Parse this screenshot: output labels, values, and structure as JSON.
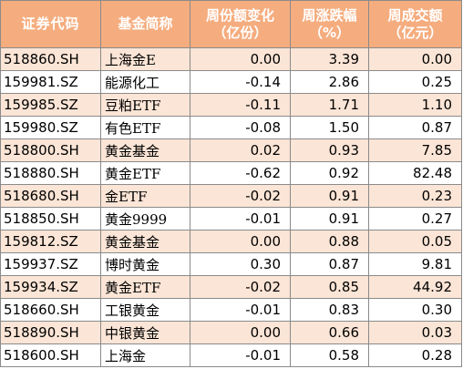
{
  "headers": [
    {
      "line1": "证券代码",
      "line2": ""
    },
    {
      "line1": "基金简称",
      "line2": ""
    },
    {
      "line1": "周份额变化",
      "line2": "（亿份）"
    },
    {
      "line1": "周涨跌幅",
      "line2": "（%）"
    },
    {
      "line1": "周成交额",
      "line2": "（亿元）"
    }
  ],
  "rows": [
    {
      "code": "518860.SH",
      "name": "上海金E",
      "share_change": "0.00",
      "pct_change": "3.39",
      "turnover": "0.00"
    },
    {
      "code": "159981.SZ",
      "name": "能源化工",
      "share_change": "-0.14",
      "pct_change": "2.86",
      "turnover": "0.25"
    },
    {
      "code": "159985.SZ",
      "name": "豆粕ETF",
      "share_change": "-0.11",
      "pct_change": "1.71",
      "turnover": "1.10"
    },
    {
      "code": "159980.SZ",
      "name": "有色ETF",
      "share_change": "-0.08",
      "pct_change": "1.50",
      "turnover": "0.87"
    },
    {
      "code": "518800.SH",
      "name": "黄金基金",
      "share_change": "0.02",
      "pct_change": "0.93",
      "turnover": "7.85"
    },
    {
      "code": "518880.SH",
      "name": "黄金ETF",
      "share_change": "-0.62",
      "pct_change": "0.92",
      "turnover": "82.48"
    },
    {
      "code": "518680.SH",
      "name": "金ETF",
      "share_change": "-0.02",
      "pct_change": "0.91",
      "turnover": "0.23"
    },
    {
      "code": "518850.SH",
      "name": "黄金9999",
      "share_change": "-0.01",
      "pct_change": "0.91",
      "turnover": "0.27"
    },
    {
      "code": "159812.SZ",
      "name": "黄金基金",
      "share_change": "0.00",
      "pct_change": "0.88",
      "turnover": "0.05"
    },
    {
      "code": "159937.SZ",
      "name": "博时黄金",
      "share_change": "0.30",
      "pct_change": "0.87",
      "turnover": "9.81"
    },
    {
      "code": "159934.SZ",
      "name": "黄金ETF",
      "share_change": "-0.02",
      "pct_change": "0.85",
      "turnover": "44.92"
    },
    {
      "code": "518660.SH",
      "name": "工银黄金",
      "share_change": "-0.01",
      "pct_change": "0.83",
      "turnover": "0.30"
    },
    {
      "code": "518890.SH",
      "name": "中银黄金",
      "share_change": "0.00",
      "pct_change": "0.66",
      "turnover": "0.03"
    },
    {
      "code": "518600.SH",
      "name": "上海金",
      "share_change": "-0.01",
      "pct_change": "0.58",
      "turnover": "0.28"
    }
  ]
}
